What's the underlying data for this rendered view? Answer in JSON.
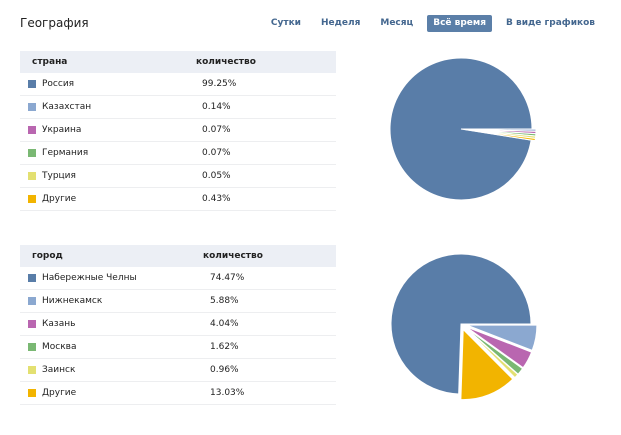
{
  "page": {
    "title": "География"
  },
  "tabs": [
    {
      "label": "Сутки",
      "active": false
    },
    {
      "label": "Неделя",
      "active": false
    },
    {
      "label": "Месяц",
      "active": false
    },
    {
      "label": "Всё время",
      "active": true
    },
    {
      "label": "В виде графиков",
      "active": false
    }
  ],
  "countries": {
    "headers": {
      "name": "страна",
      "count": "количество"
    },
    "rows": [
      {
        "name": "Россия",
        "pct": "99.25%",
        "value": 99.25,
        "color": "#597da8"
      },
      {
        "name": "Казахстан",
        "pct": "0.14%",
        "value": 0.14,
        "color": "#8ba8d0"
      },
      {
        "name": "Украина",
        "pct": "0.07%",
        "value": 0.07,
        "color": "#b966b0"
      },
      {
        "name": "Германия",
        "pct": "0.07%",
        "value": 0.07,
        "color": "#7ab873"
      },
      {
        "name": "Турция",
        "pct": "0.05%",
        "value": 0.05,
        "color": "#e3e071"
      },
      {
        "name": "Другие",
        "pct": "0.43%",
        "value": 0.43,
        "color": "#f2b400"
      }
    ]
  },
  "cities": {
    "headers": {
      "name": "город",
      "count": "количество"
    },
    "rows": [
      {
        "name": "Набережные Челны",
        "pct": "74.47%",
        "value": 74.47,
        "color": "#597da8"
      },
      {
        "name": "Нижнекамск",
        "pct": "5.88%",
        "value": 5.88,
        "color": "#8ba8d0"
      },
      {
        "name": "Казань",
        "pct": "4.04%",
        "value": 4.04,
        "color": "#b966b0"
      },
      {
        "name": "Москва",
        "pct": "1.62%",
        "value": 1.62,
        "color": "#7ab873"
      },
      {
        "name": "Заинск",
        "pct": "0.96%",
        "value": 0.96,
        "color": "#e3e071"
      },
      {
        "name": "Другие",
        "pct": "13.03%",
        "value": 13.03,
        "color": "#f2b400"
      }
    ]
  }
}
